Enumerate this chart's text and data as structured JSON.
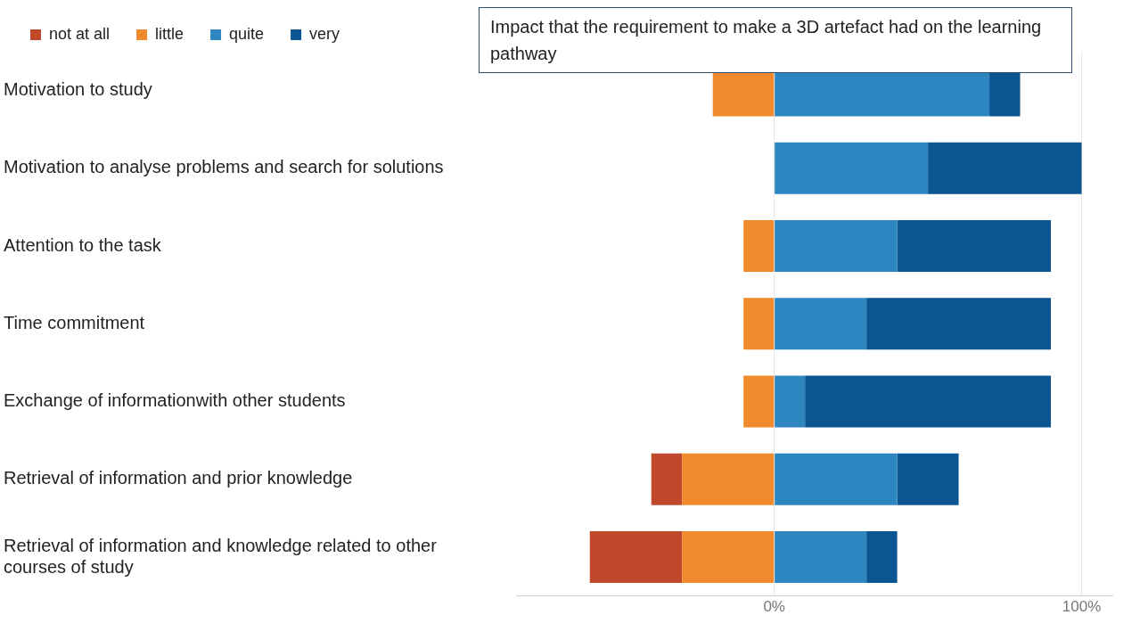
{
  "chart_data": {
    "type": "bar",
    "orientation": "horizontal",
    "stacked": true,
    "title": "Impact that the requirement to make a 3D artefact had on the learning pathway",
    "categories": [
      "Motivation to study",
      "Motivation to analyse problems and search for solutions",
      "Attention to the task",
      "Time commitment",
      "Exchange of informationwith other students",
      "Retrieval of information and prior knowledge",
      "Retrieval of information and knowledge related to other courses of study"
    ],
    "series": [
      {
        "name": "little",
        "color": "#f08a2c",
        "values": [
          -20,
          0,
          -10,
          -10,
          -10,
          -30,
          -30
        ]
      },
      {
        "name": "not at all",
        "color": "#c0482a",
        "values": [
          0,
          0,
          0,
          0,
          0,
          -10,
          -30
        ]
      },
      {
        "name": "quite",
        "color": "#2e86c1",
        "values": [
          70,
          50,
          40,
          30,
          10,
          40,
          30
        ]
      },
      {
        "name": "very",
        "color": "#0b5592",
        "values": [
          10,
          50,
          50,
          60,
          80,
          20,
          10
        ]
      }
    ],
    "xlim": [
      -84,
      110
    ],
    "xticks": [
      {
        "value": 0,
        "label": "0%"
      },
      {
        "value": 100,
        "label": "100%"
      }
    ],
    "grid": "x",
    "legend": "top left"
  }
}
